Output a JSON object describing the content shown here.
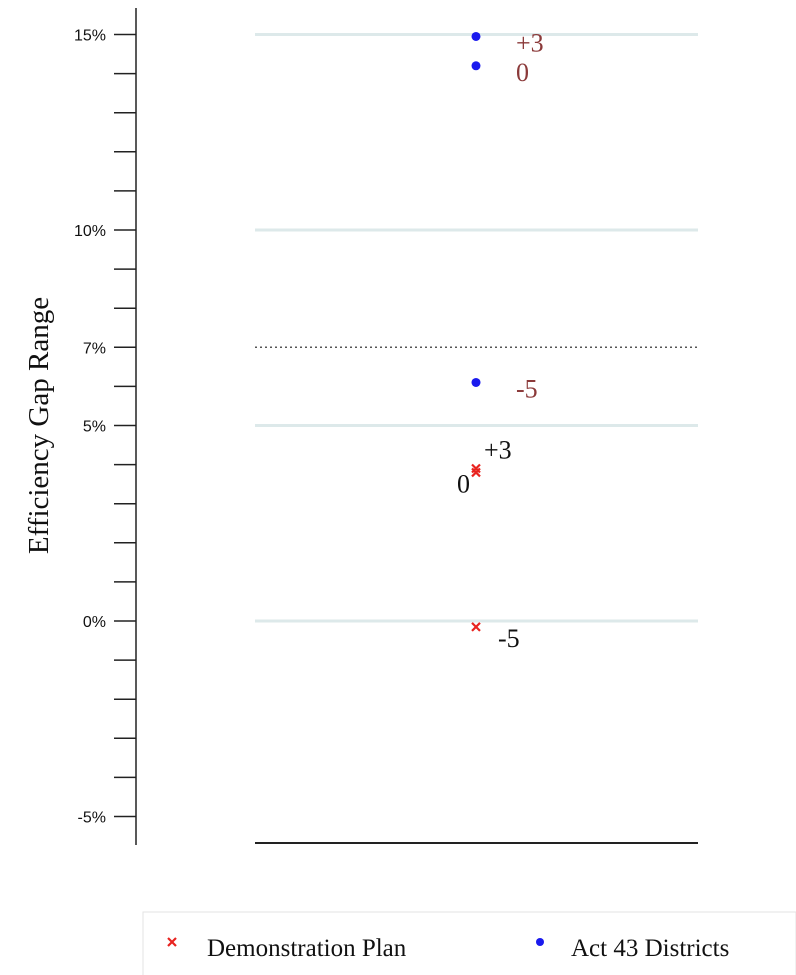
{
  "chart_data": {
    "type": "scatter",
    "title": "",
    "ylabel": "Efficiency Gap Range",
    "ylim": [
      -5.5,
      15.7
    ],
    "y_tick_labels": [
      {
        "value": 15,
        "label": "15%"
      },
      {
        "value": 10,
        "label": "10%"
      },
      {
        "value": 7,
        "label": "7%"
      },
      {
        "value": 5,
        "label": "5%"
      },
      {
        "value": 0,
        "label": "0%"
      },
      {
        "value": -5,
        "label": "-5%"
      }
    ],
    "y_minor_ticks": [
      14,
      13,
      12,
      11,
      9,
      8,
      6,
      4,
      3,
      2,
      1,
      -1,
      -2,
      -3,
      -4
    ],
    "gridlines": [
      15,
      10,
      5,
      0
    ],
    "threshold_line": {
      "value": 7,
      "style": "dotted"
    },
    "series": [
      {
        "name": "Demonstration Plan",
        "marker": "x",
        "color": "#e8231f",
        "label_color": "#111111",
        "points": [
          {
            "y": 3.9,
            "label": "+3"
          },
          {
            "y": 3.8,
            "label": "0"
          },
          {
            "y": -0.15,
            "label": "-5"
          }
        ]
      },
      {
        "name": "Act 43 Districts",
        "marker": "dot",
        "color": "#1a1aee",
        "label_color": "#8b3a3a",
        "points": [
          {
            "y": 14.95,
            "label": "+3"
          },
          {
            "y": 14.2,
            "label": "0"
          },
          {
            "y": 6.1,
            "label": "-5"
          }
        ]
      }
    ],
    "legend": {
      "position": "bottom",
      "entries": [
        "Demonstration Plan",
        "Act 43 Districts"
      ]
    },
    "colors": {
      "gridline": "#dde9ea",
      "axis": "#222222",
      "threshold": "#555555"
    }
  }
}
